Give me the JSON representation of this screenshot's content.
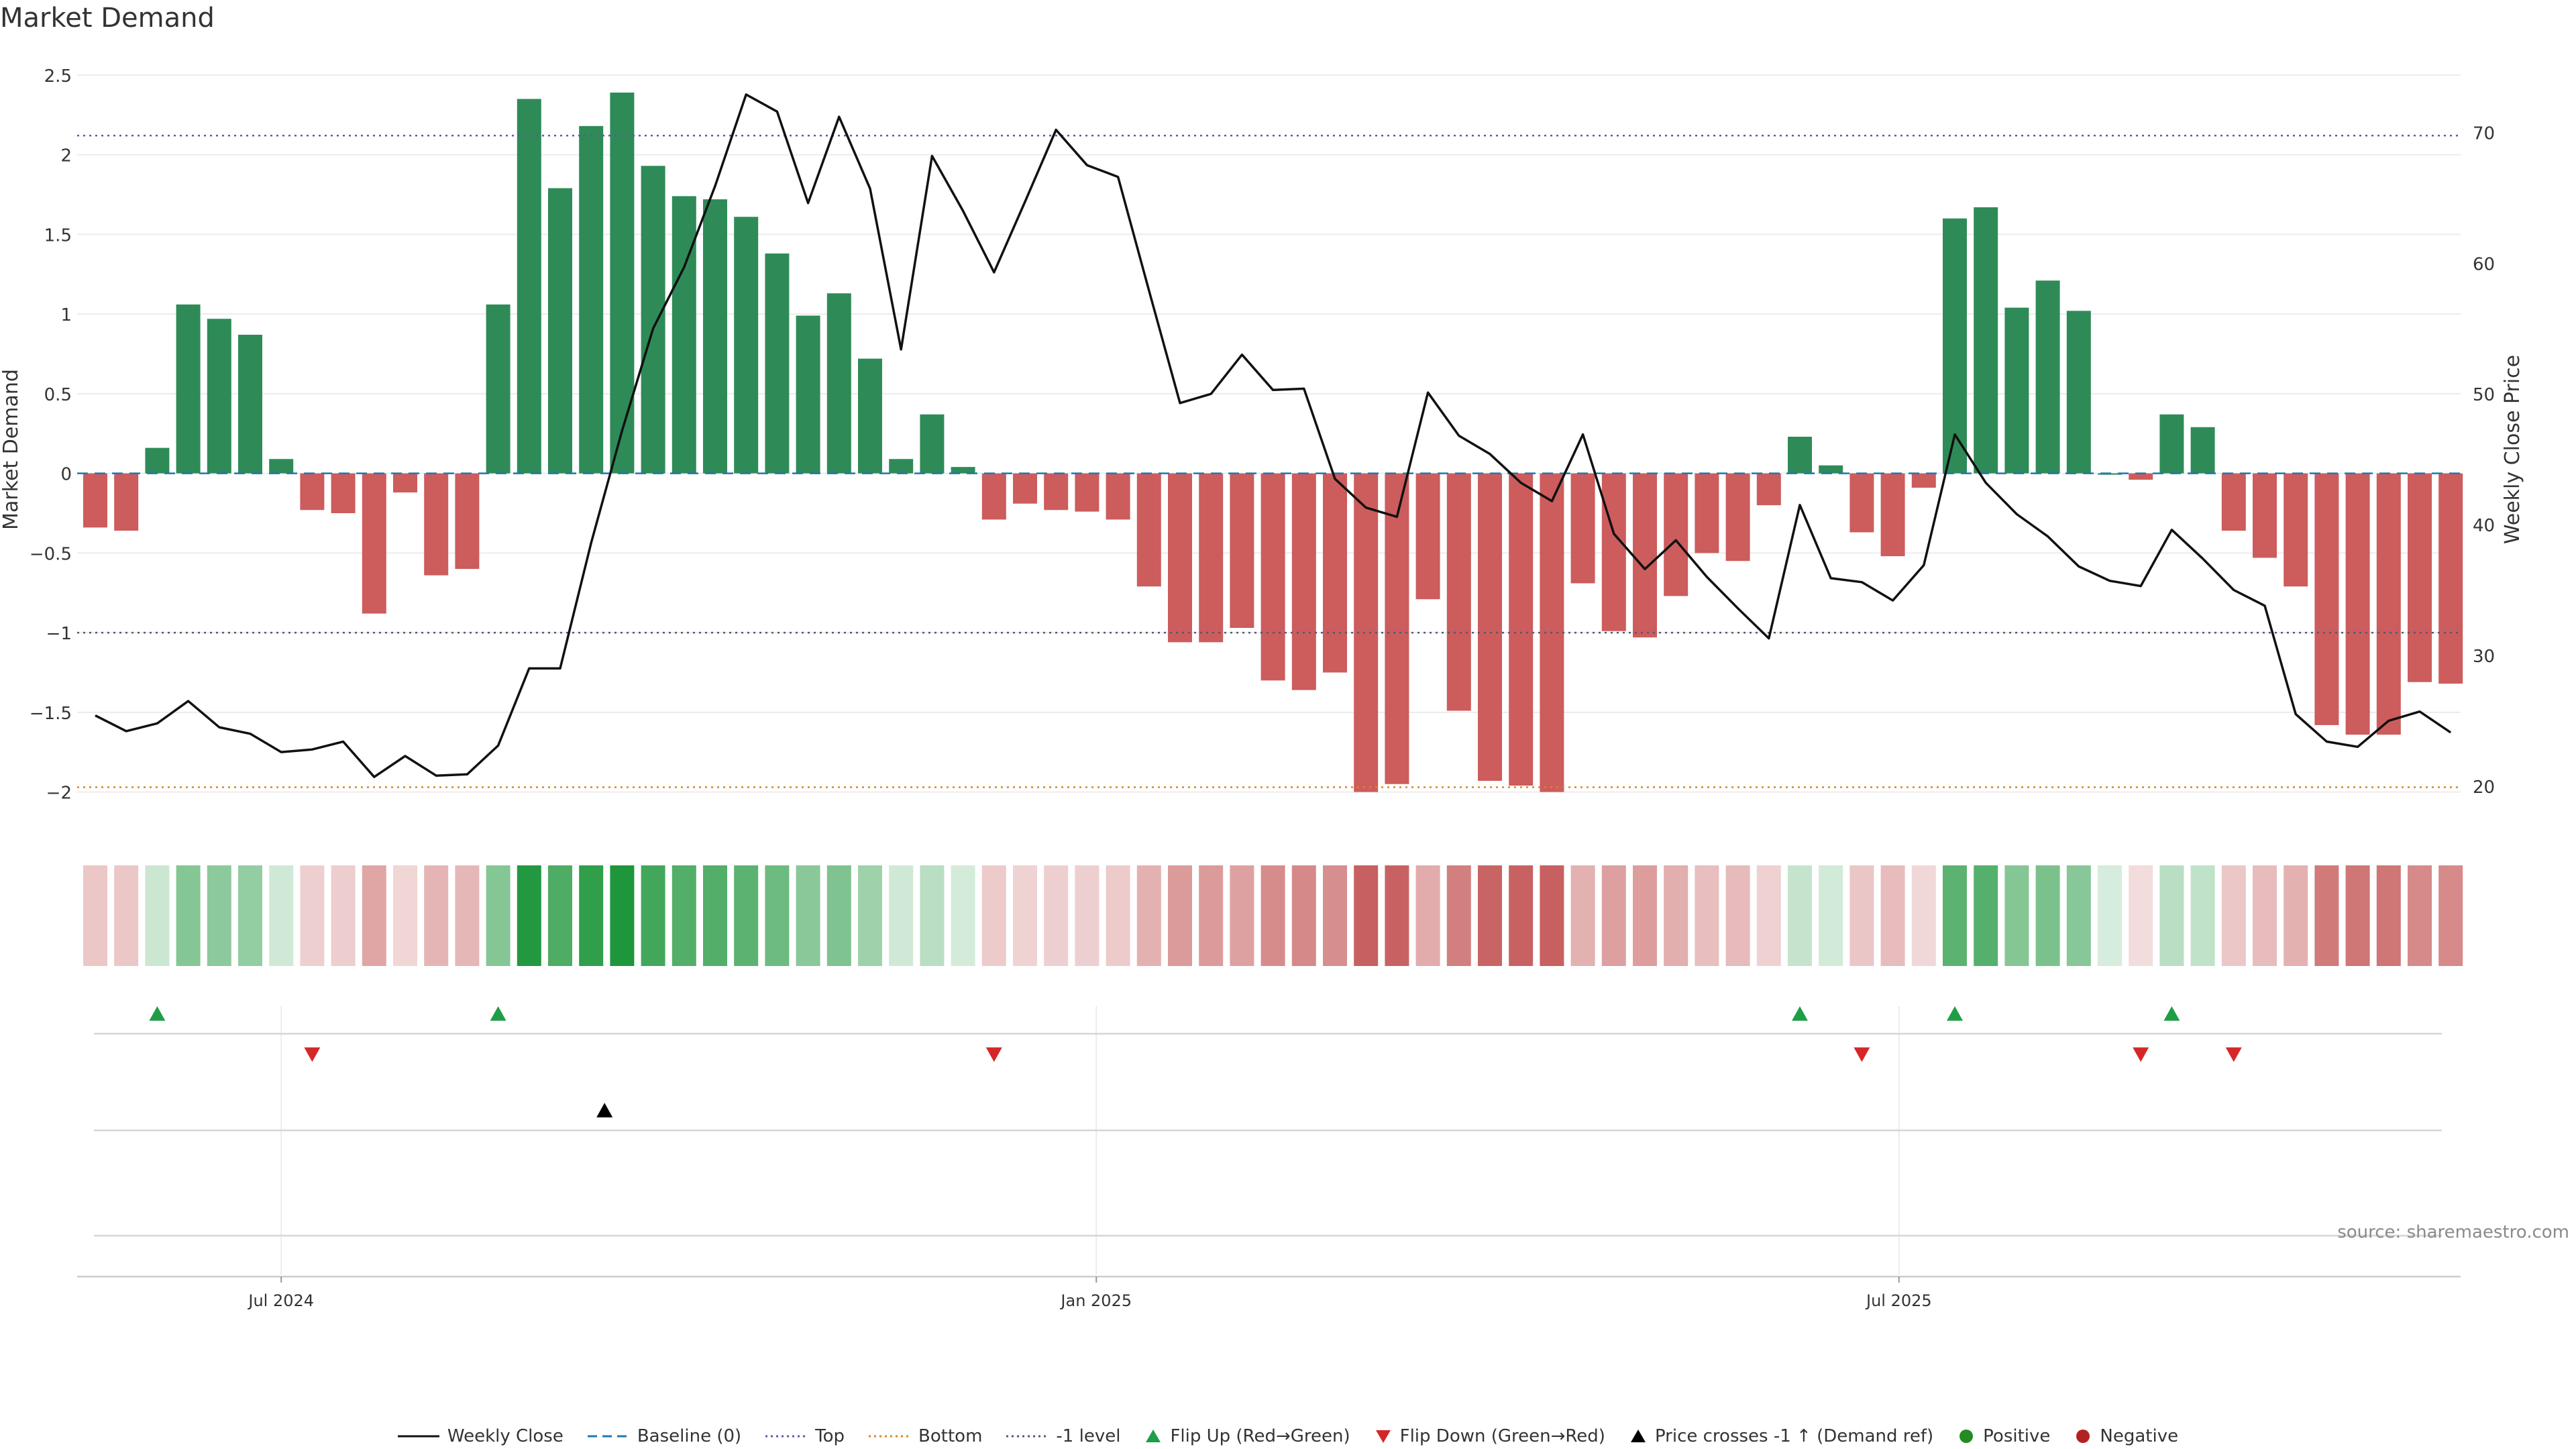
{
  "title": "Market Demand",
  "source": "source: sharemaestro.com",
  "colors": {
    "positive": "#2e8b57",
    "negative": "#cd5c5c",
    "line": "#111111",
    "baseline": "#1f77b4",
    "top": "#5b5ba8",
    "bottom": "#e0841a",
    "minus1": "#555577",
    "flip_up": "#1e9e46",
    "flip_down": "#d62728",
    "cross": "#000000"
  },
  "chart_data": {
    "type": "bar",
    "title": "Market Demand",
    "ylabel": "Market Demand",
    "y2label": "Weekly Close Price",
    "ylim": [
      -2.25,
      2.55
    ],
    "y2lim": [
      16.5,
      75
    ],
    "yticks": [
      2.5,
      2,
      1.5,
      1,
      0.5,
      0,
      -0.5,
      -1,
      -1.5,
      -2
    ],
    "yticklabels": [
      "2.5",
      "2",
      "1.5",
      "1",
      "0.5",
      "0",
      "−0.5",
      "−1",
      "−1.5",
      "−2"
    ],
    "y2ticks": [
      20,
      30,
      40,
      50,
      60,
      70
    ],
    "xticks": [
      {
        "index": 6,
        "label": "Jul 2024"
      },
      {
        "index": 32.3,
        "label": "Jan 2025"
      },
      {
        "index": 58.2,
        "label": "Jul 2025"
      }
    ],
    "reference_lines": {
      "baseline": 0,
      "top": 2.12,
      "bottom": -1.97,
      "minus1": -1
    },
    "demand": [
      -0.34,
      -0.36,
      0.16,
      1.06,
      0.97,
      0.87,
      0.09,
      -0.23,
      -0.25,
      -0.88,
      -0.12,
      -0.64,
      -0.6,
      1.06,
      2.35,
      1.79,
      2.18,
      2.39,
      1.93,
      1.74,
      1.72,
      1.61,
      1.38,
      0.99,
      1.13,
      0.72,
      0.09,
      0.37,
      0.04,
      -0.29,
      -0.19,
      -0.23,
      -0.24,
      -0.29,
      -0.71,
      -1.06,
      -1.06,
      -0.97,
      -1.3,
      -1.36,
      -1.25,
      -2.0,
      -1.95,
      -0.79,
      -1.49,
      -1.93,
      -1.96,
      -2.0,
      -0.69,
      -0.99,
      -1.03,
      -0.77,
      -0.5,
      -0.55,
      -0.2,
      0.23,
      0.05,
      -0.37,
      -0.52,
      -0.09,
      1.6,
      1.67,
      1.04,
      1.21,
      1.02,
      0.0,
      -0.04,
      0.37,
      0.29,
      -0.36,
      -0.53,
      -0.71,
      -1.58,
      -1.64,
      -1.64,
      -1.31,
      -1.32
    ],
    "weekly_close": [
      25.4,
      24.2,
      24.8,
      26.5,
      24.5,
      24.0,
      22.6,
      22.8,
      23.4,
      20.7,
      22.3,
      20.8,
      20.9,
      23.1,
      29.0,
      29.0,
      38.6,
      47.2,
      55.0,
      59.7,
      65.9,
      72.9,
      71.6,
      64.6,
      71.2,
      65.7,
      53.4,
      68.2,
      64.0,
      59.3,
      64.7,
      70.2,
      67.5,
      66.6,
      57.9,
      49.3,
      50.0,
      53.0,
      50.3,
      50.4,
      43.5,
      41.3,
      40.6,
      50.1,
      46.8,
      45.4,
      43.2,
      41.8,
      46.9,
      39.3,
      36.6,
      38.8,
      36.0,
      33.6,
      31.3,
      41.5,
      35.9,
      35.6,
      34.2,
      36.9,
      46.9,
      43.2,
      40.8,
      39.1,
      36.8,
      35.7,
      35.3,
      39.6,
      37.4,
      35.0,
      33.8,
      25.5,
      23.4,
      23.0,
      25.0,
      25.7,
      24.1
    ],
    "flip_up": [
      2,
      13,
      55,
      60,
      67
    ],
    "flip_down": [
      7,
      29,
      57,
      66,
      69
    ],
    "price_cross_up": [
      16
    ]
  },
  "legend": [
    {
      "label": "Weekly Close",
      "symbol": "line-solid",
      "color": "#111111"
    },
    {
      "label": "Baseline (0)",
      "symbol": "line-dashed",
      "color": "#1f77b4"
    },
    {
      "label": "Top",
      "symbol": "line-dotted",
      "color": "#5b5ba8"
    },
    {
      "label": "Bottom",
      "symbol": "line-dotted",
      "color": "#e0841a"
    },
    {
      "label": "-1 level",
      "symbol": "line-dotted",
      "color": "#555577"
    },
    {
      "label": "Flip Up (Red→Green)",
      "symbol": "triangle-up",
      "color": "#1e9e46"
    },
    {
      "label": "Flip Down (Green→Red)",
      "symbol": "triangle-down",
      "color": "#d62728"
    },
    {
      "label": "Price crosses -1 ↑ (Demand ref)",
      "symbol": "triangle-up",
      "color": "#000000"
    },
    {
      "label": "Positive",
      "symbol": "circle",
      "color": "#228b22"
    },
    {
      "label": "Negative",
      "symbol": "circle",
      "color": "#b22222"
    }
  ]
}
